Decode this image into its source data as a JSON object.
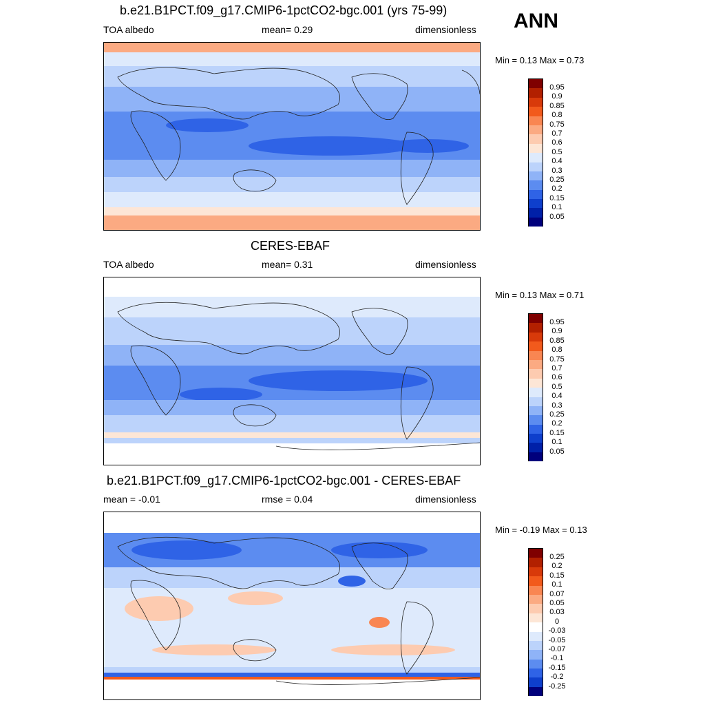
{
  "season": "ANN",
  "panels": [
    {
      "title": "b.e21.B1PCT.f09_g17.CMIP6-1pctCO2-bgc.001 (yrs 75-99)",
      "left": "TOA albedo",
      "center": "mean=   0.29",
      "right": "dimensionless",
      "minmax": "Min =   0.13 Max =   0.73",
      "colorbar": {
        "labels": [
          "0.95",
          "0.9",
          "0.85",
          "0.8",
          "0.75",
          "0.7",
          "0.6",
          "0.5",
          "0.4",
          "0.3",
          "0.25",
          "0.2",
          "0.15",
          "0.1",
          "0.05"
        ],
        "colors": [
          "#7f0000",
          "#b22000",
          "#d83a0a",
          "#f25a1c",
          "#f98652",
          "#fbaa82",
          "#fdcbb0",
          "#fde6d6",
          "#deeafc",
          "#bcd3fb",
          "#8fb3f7",
          "#5c8cf0",
          "#2f63e6",
          "#0e3fcc",
          "#0020a8",
          "#00007c"
        ]
      }
    },
    {
      "title": "CERES-EBAF",
      "left": "TOA albedo",
      "center": "mean=   0.31",
      "right": "dimensionless",
      "minmax": "Min =   0.13 Max =   0.71",
      "colorbar": {
        "labels": [
          "0.95",
          "0.9",
          "0.85",
          "0.8",
          "0.75",
          "0.7",
          "0.6",
          "0.5",
          "0.4",
          "0.3",
          "0.25",
          "0.2",
          "0.15",
          "0.1",
          "0.05"
        ],
        "colors": [
          "#7f0000",
          "#b22000",
          "#d83a0a",
          "#f25a1c",
          "#f98652",
          "#fbaa82",
          "#fdcbb0",
          "#fde6d6",
          "#deeafc",
          "#bcd3fb",
          "#8fb3f7",
          "#5c8cf0",
          "#2f63e6",
          "#0e3fcc",
          "#0020a8",
          "#00007c"
        ]
      }
    },
    {
      "title": "b.e21.B1PCT.f09_g17.CMIP6-1pctCO2-bgc.001 - CERES-EBAF",
      "left": "mean =  -0.01",
      "center": "rmse =   0.04",
      "right": "dimensionless",
      "minmax": "Min =  -0.19 Max =   0.13",
      "colorbar": {
        "labels": [
          "0.25",
          "0.2",
          "0.15",
          "0.1",
          "0.07",
          "0.05",
          "0.03",
          "0",
          "-0.03",
          "-0.05",
          "-0.07",
          "-0.1",
          "-0.15",
          "-0.2",
          "-0.25"
        ],
        "colors": [
          "#7f0000",
          "#b22000",
          "#d83a0a",
          "#f25a1c",
          "#f98652",
          "#fbaa82",
          "#fdcbb0",
          "#fde6d6",
          "#ffffff",
          "#deeafc",
          "#bcd3fb",
          "#8fb3f7",
          "#5c8cf0",
          "#2f63e6",
          "#0e3fcc",
          "#00007c"
        ]
      }
    }
  ]
}
